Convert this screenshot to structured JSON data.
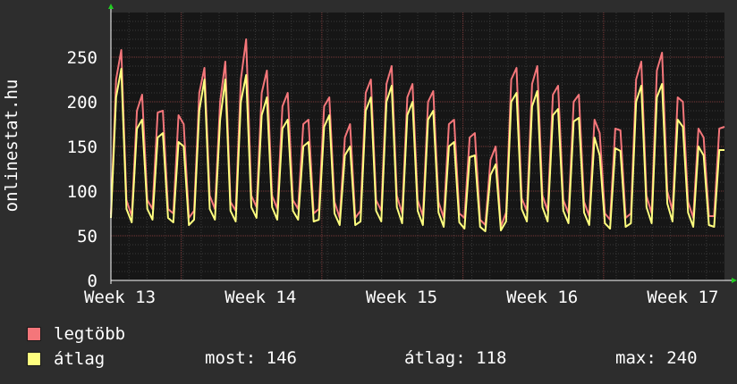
{
  "chart_data": {
    "type": "line",
    "vertical_label": "onlinestat.hu",
    "ylim": [
      0,
      300
    ],
    "y_ticks": [
      0,
      50,
      100,
      150,
      200,
      250
    ],
    "x_ticks": [
      "Week 13",
      "Week 14",
      "Week 15",
      "Week 16",
      "Week 17"
    ],
    "grid": true,
    "series": [
      {
        "name": "legtöbb",
        "color": "#f4767a",
        "values": [
          74,
          225,
          258,
          90,
          72,
          190,
          208,
          90,
          80,
          188,
          190,
          80,
          75,
          185,
          175,
          70,
          78,
          210,
          238,
          95,
          80,
          200,
          245,
          88,
          78,
          225,
          270,
          95,
          82,
          210,
          235,
          95,
          80,
          195,
          210,
          90,
          80,
          175,
          180,
          75,
          80,
          195,
          205,
          88,
          70,
          160,
          175,
          70,
          78,
          210,
          225,
          90,
          78,
          220,
          240,
          95,
          75,
          205,
          220,
          90,
          72,
          200,
          212,
          88,
          70,
          175,
          180,
          75,
          70,
          160,
          165,
          68,
          62,
          135,
          150,
          60,
          76,
          225,
          238,
          92,
          78,
          220,
          240,
          95,
          78,
          208,
          218,
          90,
          75,
          200,
          208,
          88,
          72,
          180,
          165,
          75,
          68,
          170,
          168,
          70,
          75,
          225,
          245,
          95,
          75,
          235,
          255,
          100,
          78,
          205,
          200,
          88,
          70,
          170,
          160,
          72,
          72,
          170,
          172
        ]
      },
      {
        "name": "átlag",
        "color": "#ffff7f",
        "values": [
          70,
          205,
          237,
          80,
          65,
          170,
          180,
          80,
          68,
          160,
          165,
          70,
          65,
          155,
          150,
          62,
          68,
          190,
          225,
          80,
          68,
          180,
          225,
          78,
          66,
          200,
          230,
          82,
          70,
          185,
          205,
          82,
          68,
          170,
          180,
          78,
          68,
          150,
          155,
          66,
          68,
          172,
          185,
          75,
          62,
          140,
          150,
          62,
          66,
          190,
          205,
          78,
          66,
          200,
          218,
          82,
          64,
          185,
          200,
          78,
          62,
          180,
          190,
          76,
          60,
          150,
          155,
          65,
          58,
          138,
          140,
          60,
          55,
          118,
          130,
          56,
          66,
          200,
          210,
          80,
          66,
          195,
          212,
          82,
          66,
          185,
          192,
          78,
          64,
          178,
          182,
          76,
          62,
          160,
          140,
          64,
          58,
          148,
          145,
          60,
          64,
          200,
          218,
          82,
          64,
          205,
          220,
          86,
          66,
          180,
          172,
          76,
          60,
          150,
          140,
          62,
          60,
          146,
          146
        ]
      }
    ]
  },
  "legend": {
    "max_label": "legtöbb",
    "avg_label": "átlag",
    "max_color": "#f4767a",
    "avg_color": "#ffff7f"
  },
  "stats": {
    "current": "most: 146",
    "average": "átlag: 118",
    "maximum": "max: 240"
  }
}
